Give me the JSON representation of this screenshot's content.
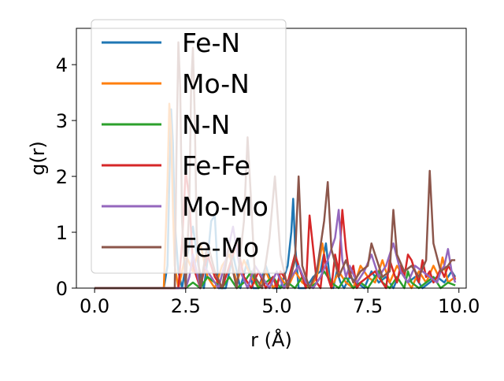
{
  "chart_data": {
    "type": "line",
    "title": "",
    "xlabel": "r (Å)",
    "ylabel": "g(r)",
    "xlim": [
      -0.5,
      10.2
    ],
    "ylim": [
      0,
      4.65
    ],
    "xticks": [
      0.0,
      2.5,
      5.0,
      7.5,
      10.0
    ],
    "xtick_labels": [
      "0.0",
      "2.5",
      "5.0",
      "7.5",
      "10.0"
    ],
    "yticks": [
      0,
      1,
      2,
      3,
      4
    ],
    "ytick_labels": [
      "0",
      "1",
      "2",
      "3",
      "4"
    ],
    "grid": false,
    "legend_position": "upper-left",
    "series": [
      {
        "name": "Fe-N",
        "color": "#1f77b4",
        "x": [
          0,
          1.9,
          2.0,
          2.05,
          2.1,
          2.15,
          2.2,
          2.3,
          2.4,
          2.55,
          2.7,
          2.85,
          3.0,
          3.1,
          3.2,
          3.3,
          3.4,
          3.6,
          3.8,
          4.0,
          4.2,
          4.35,
          4.5,
          4.7,
          4.9,
          5.1,
          5.3,
          5.4,
          5.45,
          5.5,
          5.6,
          5.8,
          6.0,
          6.2,
          6.35,
          6.45,
          6.55,
          6.65,
          6.75,
          6.85,
          7.0,
          7.2,
          7.4,
          7.6,
          7.8,
          8.0,
          8.2,
          8.4,
          8.6,
          8.8,
          9.0,
          9.2,
          9.4,
          9.6,
          9.8,
          9.9
        ],
        "y": [
          0,
          0,
          0.4,
          1.9,
          3.2,
          2.6,
          1.2,
          0.3,
          0,
          0.6,
          1.1,
          0.4,
          0,
          0.5,
          1.2,
          1.3,
          0,
          0,
          0.6,
          0,
          0.5,
          0,
          0,
          0.4,
          0,
          0,
          0.4,
          1.0,
          1.6,
          0.8,
          0,
          0,
          0.2,
          0.3,
          0.8,
          0.2,
          0,
          0.3,
          0.1,
          0,
          0.2,
          0.1,
          0,
          0.3,
          0.1,
          0.2,
          0,
          0.3,
          0.1,
          0.2,
          0,
          0.1,
          0.2,
          0.1,
          0.3,
          0.2
        ]
      },
      {
        "name": "Mo-N",
        "color": "#ff7f0e",
        "x": [
          0,
          1.9,
          2.0,
          2.05,
          2.1,
          2.15,
          2.2,
          2.3,
          2.5,
          2.7,
          2.9,
          3.1,
          3.3,
          3.5,
          3.7,
          3.9,
          4.1,
          4.3,
          4.5,
          4.7,
          4.9,
          5.1,
          5.3,
          5.5,
          5.7,
          5.9,
          6.1,
          6.25,
          6.35,
          6.5,
          6.7,
          6.9,
          7.1,
          7.3,
          7.5,
          7.7,
          7.9,
          8.0,
          8.1,
          8.3,
          8.5,
          8.7,
          8.9,
          9.1,
          9.3,
          9.45,
          9.55,
          9.7,
          9.9
        ],
        "y": [
          0,
          0,
          1.9,
          3.3,
          2.8,
          1.4,
          0.4,
          0,
          0.6,
          0.3,
          0.8,
          0.2,
          0,
          0.4,
          0.6,
          0.1,
          0.5,
          0.2,
          0,
          0.3,
          0,
          0.2,
          0,
          0.3,
          0.1,
          0,
          0.2,
          0.8,
          0.4,
          0,
          0.3,
          0.1,
          0,
          0.4,
          0.2,
          0.1,
          0.5,
          0.3,
          0.1,
          0.4,
          0.2,
          0,
          0.3,
          0.1,
          0.4,
          0.2,
          0.55,
          0.1,
          0.2
        ]
      },
      {
        "name": "N-N",
        "color": "#2ca02c",
        "x": [
          0,
          2.5,
          2.7,
          2.9,
          3.1,
          3.3,
          3.5,
          3.7,
          3.9,
          4.1,
          4.3,
          4.5,
          4.7,
          4.9,
          5.1,
          5.3,
          5.5,
          5.7,
          5.9,
          6.1,
          6.3,
          6.5,
          6.7,
          6.9,
          7.1,
          7.3,
          7.5,
          7.7,
          7.8,
          7.9,
          8.1,
          8.3,
          8.5,
          8.6,
          8.7,
          8.9,
          9.1,
          9.3,
          9.5,
          9.7,
          9.9
        ],
        "y": [
          0,
          0,
          0.1,
          0,
          0.2,
          0.1,
          0,
          0.2,
          0,
          0.1,
          0.3,
          0,
          0.1,
          0.2,
          0,
          0.1,
          0,
          0.2,
          0,
          0.1,
          0.3,
          0.1,
          0,
          0.2,
          0,
          0.1,
          0,
          0.2,
          0.3,
          0.1,
          0,
          0.2,
          0,
          0.3,
          0.1,
          0,
          0.1,
          0.2,
          0,
          0.1,
          0.05
        ]
      },
      {
        "name": "Fe-Fe",
        "color": "#d62728",
        "x": [
          0,
          2.3,
          2.4,
          2.5,
          2.6,
          2.7,
          2.9,
          3.1,
          3.3,
          3.5,
          3.7,
          3.9,
          4.1,
          4.3,
          4.5,
          4.7,
          4.9,
          5.0,
          5.1,
          5.3,
          5.5,
          5.7,
          5.8,
          5.9,
          6.0,
          6.1,
          6.2,
          6.3,
          6.4,
          6.5,
          6.6,
          6.7,
          6.8,
          6.9,
          7.0,
          7.1,
          7.2,
          7.3,
          7.5,
          7.7,
          7.9,
          8.0,
          8.1,
          8.2,
          8.3,
          8.4,
          8.5,
          8.6,
          8.7,
          8.8,
          8.9,
          9.0,
          9.1,
          9.2,
          9.3,
          9.4,
          9.5,
          9.6,
          9.7,
          9.8,
          9.9
        ],
        "y": [
          0,
          0,
          0.8,
          2.1,
          1.6,
          0.4,
          0,
          0.6,
          0.2,
          0,
          0.4,
          0.8,
          0.2,
          0,
          0.3,
          0,
          0.2,
          0,
          0.3,
          0.1,
          0.6,
          0.2,
          0,
          1.3,
          0.7,
          0.1,
          0,
          0.6,
          0.2,
          0,
          0.6,
          0.3,
          1.4,
          0.7,
          0.2,
          0.4,
          0,
          0.1,
          0.2,
          0.3,
          0.1,
          0,
          0.5,
          0.3,
          0.1,
          0.4,
          0.2,
          0.6,
          0.5,
          0.3,
          0.1,
          0.5,
          0.2,
          0.3,
          0.1,
          0.2,
          0.35,
          0.2,
          0.4,
          0.3,
          0.15
        ]
      },
      {
        "name": "Mo-Mo",
        "color": "#9467bd",
        "x": [
          0,
          2.5,
          2.6,
          2.7,
          2.8,
          2.9,
          3.0,
          3.2,
          3.4,
          3.6,
          3.8,
          4.0,
          4.2,
          4.4,
          4.6,
          4.8,
          5.0,
          5.2,
          5.4,
          5.6,
          5.8,
          6.0,
          6.2,
          6.4,
          6.6,
          6.7,
          6.8,
          6.9,
          7.0,
          7.2,
          7.4,
          7.6,
          7.8,
          8.0,
          8.2,
          8.4,
          8.6,
          8.8,
          9.0,
          9.2,
          9.4,
          9.5,
          9.6,
          9.7,
          9.8,
          9.9
        ],
        "y": [
          0,
          0,
          0.2,
          0.6,
          0.3,
          0,
          0.4,
          0.2,
          0,
          0.5,
          1.1,
          0.3,
          0,
          0.4,
          0.2,
          0,
          0.3,
          0,
          0.2,
          0.4,
          0.1,
          0,
          0.2,
          0.5,
          0.9,
          1.4,
          0.5,
          0.2,
          0.4,
          0.1,
          0.3,
          0.6,
          0.2,
          0.4,
          0.8,
          0.3,
          0.1,
          0.4,
          0.3,
          0.2,
          0.1,
          0.3,
          0.4,
          0.7,
          0.3,
          0.1
        ]
      },
      {
        "name": "Fe-Mo",
        "color": "#8c564b",
        "x": [
          0,
          2.2,
          2.25,
          2.3,
          2.35,
          2.4,
          2.5,
          2.6,
          2.65,
          2.7,
          2.75,
          2.8,
          2.9,
          3.1,
          3.3,
          3.5,
          3.7,
          3.8,
          3.9,
          4.1,
          4.2,
          4.3,
          4.4,
          4.6,
          4.8,
          4.95,
          5.1,
          5.3,
          5.5,
          5.6,
          5.7,
          5.9,
          6.1,
          6.3,
          6.4,
          6.5,
          6.7,
          6.9,
          7.1,
          7.3,
          7.5,
          7.6,
          7.7,
          7.9,
          8.1,
          8.2,
          8.3,
          8.5,
          8.7,
          8.9,
          9.1,
          9.2,
          9.3,
          9.5,
          9.7,
          9.8,
          9.9
        ],
        "y": [
          0,
          0,
          2.5,
          4.4,
          3.6,
          1.2,
          0,
          1.5,
          3.6,
          4.3,
          3.0,
          1.0,
          0,
          0.8,
          0.3,
          0,
          0.8,
          0.3,
          0,
          1.2,
          2.7,
          1.5,
          0.2,
          0,
          0.9,
          2.0,
          0.6,
          0,
          0.5,
          2.0,
          0.4,
          0,
          0.3,
          1.2,
          1.9,
          0.7,
          0.2,
          0.5,
          0.1,
          0.3,
          0.4,
          0.8,
          0.6,
          0.2,
          0.3,
          1.4,
          0.6,
          0.3,
          0.4,
          0.2,
          0.5,
          2.1,
          0.8,
          0.3,
          0.4,
          0.5,
          0.5
        ]
      }
    ]
  }
}
